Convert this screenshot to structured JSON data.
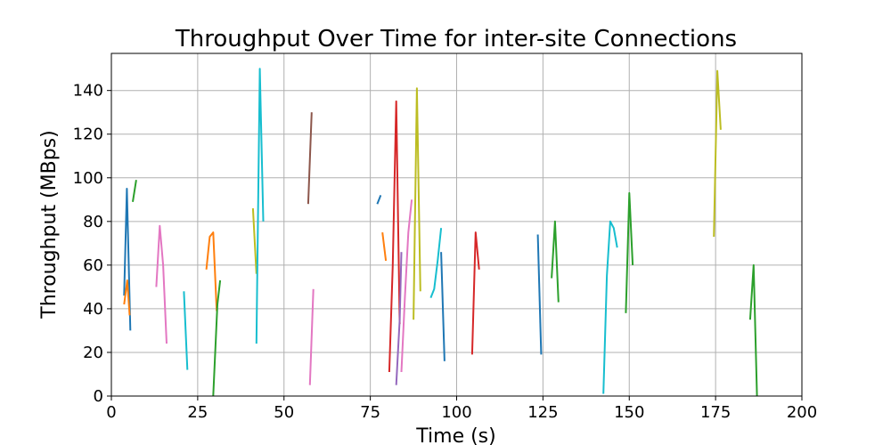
{
  "chart_data": {
    "type": "line",
    "title": "Throughput Over Time for inter-site Connections",
    "xlabel": "Time (s)",
    "ylabel": "Throughput (MBps)",
    "xlim": [
      0,
      200
    ],
    "ylim": [
      0,
      157
    ],
    "xticks": [
      0,
      25,
      50,
      75,
      100,
      125,
      150,
      175,
      200
    ],
    "yticks": [
      0,
      20,
      40,
      60,
      80,
      100,
      120,
      140
    ],
    "grid": true,
    "legend": false,
    "colors": [
      "#1f77b4",
      "#ff7f0e",
      "#2ca02c",
      "#d62728",
      "#9467bd",
      "#8c564b",
      "#e377c2",
      "#7f7f7f",
      "#bcbd22",
      "#17becf"
    ],
    "series": [
      {
        "color": "#1f77b4",
        "points": [
          [
            3.7,
            46
          ],
          [
            4.5,
            95
          ],
          [
            5.5,
            30
          ]
        ]
      },
      {
        "color": "#ff7f0e",
        "points": [
          [
            3.7,
            42
          ],
          [
            4.6,
            53
          ],
          [
            5.3,
            37
          ]
        ]
      },
      {
        "color": "#2ca02c",
        "points": [
          [
            6.2,
            89
          ],
          [
            7.2,
            99
          ]
        ]
      },
      {
        "color": "#e377c2",
        "points": [
          [
            13.0,
            50
          ],
          [
            14.0,
            78
          ],
          [
            15.0,
            60
          ],
          [
            16.0,
            24
          ]
        ]
      },
      {
        "color": "#17becf",
        "points": [
          [
            21.0,
            48
          ],
          [
            22.0,
            12
          ]
        ]
      },
      {
        "color": "#ff7f0e",
        "points": [
          [
            27.5,
            58
          ],
          [
            28.5,
            73
          ],
          [
            29.5,
            75
          ],
          [
            30.5,
            39
          ]
        ]
      },
      {
        "color": "#2ca02c",
        "points": [
          [
            29.5,
            0
          ],
          [
            30.5,
            35
          ],
          [
            30.7,
            42
          ],
          [
            31.5,
            53
          ]
        ]
      },
      {
        "color": "#bcbd22",
        "points": [
          [
            41.0,
            86
          ],
          [
            42.0,
            56
          ]
        ]
      },
      {
        "color": "#17becf",
        "points": [
          [
            42.0,
            24
          ],
          [
            43.0,
            150
          ],
          [
            44.0,
            80
          ]
        ]
      },
      {
        "color": "#8c564b",
        "points": [
          [
            57.0,
            88
          ],
          [
            58.0,
            130
          ]
        ]
      },
      {
        "color": "#e377c2",
        "points": [
          [
            57.5,
            5
          ],
          [
            58.5,
            49
          ]
        ]
      },
      {
        "color": "#1f77b4",
        "points": [
          [
            77.0,
            88
          ],
          [
            78.0,
            92
          ]
        ]
      },
      {
        "color": "#ff7f0e",
        "points": [
          [
            78.5,
            75
          ],
          [
            79.5,
            62
          ]
        ]
      },
      {
        "color": "#d62728",
        "points": [
          [
            80.5,
            11
          ],
          [
            81.5,
            60
          ],
          [
            82.5,
            135
          ],
          [
            83.5,
            33
          ]
        ]
      },
      {
        "color": "#9467bd",
        "points": [
          [
            82.5,
            5
          ],
          [
            83.5,
            35
          ],
          [
            84.0,
            66
          ]
        ]
      },
      {
        "color": "#e377c2",
        "points": [
          [
            84.0,
            11
          ],
          [
            85.0,
            45
          ],
          [
            86.0,
            75
          ],
          [
            87.0,
            90
          ]
        ]
      },
      {
        "color": "#bcbd22",
        "points": [
          [
            87.5,
            35
          ],
          [
            88.5,
            141
          ],
          [
            89.5,
            48
          ]
        ]
      },
      {
        "color": "#17becf",
        "points": [
          [
            92.5,
            45
          ],
          [
            93.5,
            49
          ],
          [
            94.5,
            62
          ],
          [
            95.5,
            77
          ]
        ]
      },
      {
        "color": "#1f77b4",
        "points": [
          [
            95.5,
            66
          ],
          [
            96.5,
            16
          ]
        ]
      },
      {
        "color": "#d62728",
        "points": [
          [
            104.5,
            19
          ],
          [
            105.5,
            75
          ],
          [
            106.5,
            58
          ]
        ]
      },
      {
        "color": "#1f77b4",
        "points": [
          [
            123.5,
            74
          ],
          [
            124.5,
            19
          ]
        ]
      },
      {
        "color": "#2ca02c",
        "points": [
          [
            127.5,
            54
          ],
          [
            128.5,
            80
          ],
          [
            129.5,
            43
          ]
        ]
      },
      {
        "color": "#17becf",
        "points": [
          [
            142.5,
            1
          ],
          [
            143.5,
            55
          ],
          [
            144.5,
            80
          ],
          [
            145.5,
            77
          ],
          [
            146.5,
            68
          ]
        ]
      },
      {
        "color": "#2ca02c",
        "points": [
          [
            149.0,
            38
          ],
          [
            150.0,
            93
          ],
          [
            151.0,
            60
          ]
        ]
      },
      {
        "color": "#bcbd22",
        "points": [
          [
            174.5,
            73
          ],
          [
            175.5,
            149
          ],
          [
            176.5,
            122
          ]
        ]
      },
      {
        "color": "#2ca02c",
        "points": [
          [
            185.0,
            35
          ],
          [
            186.0,
            60
          ],
          [
            187.0,
            0
          ]
        ]
      }
    ]
  }
}
